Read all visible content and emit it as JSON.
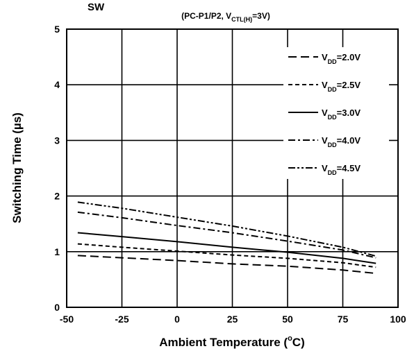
{
  "chart_data": {
    "type": "line",
    "title_fragment": "SW",
    "subtitle": {
      "prefix": "(PC-P1/P2, V",
      "sub": "CTL(H)",
      "suffix": "=3V)"
    },
    "xlabel": "Ambient Temperature (°C)",
    "xlabel_parts": {
      "main": "Ambient Temperature (",
      "sup": "o",
      "end": "C)"
    },
    "ylabel": "Switching Time (µs)",
    "xlim": [
      -50,
      100
    ],
    "ylim": [
      0,
      5
    ],
    "x_ticks": [
      "-50",
      "-25",
      "0",
      "25",
      "50",
      "75",
      "100"
    ],
    "x_tick_values": [
      -50,
      -25,
      0,
      25,
      50,
      75,
      100
    ],
    "y_ticks": [
      "0",
      "1",
      "2",
      "3",
      "4",
      "5"
    ],
    "y_tick_values": [
      0,
      1,
      2,
      3,
      4,
      5
    ],
    "grid": true,
    "legend_position": "top-right",
    "series": [
      {
        "name": "VDD=2.0V",
        "label_main": "V",
        "label_sub": "DD",
        "label_value": "=2.0V",
        "dash": "long-dash",
        "x": [
          -45,
          -25,
          0,
          25,
          50,
          75,
          90
        ],
        "y": [
          0.93,
          0.89,
          0.84,
          0.78,
          0.74,
          0.67,
          0.61
        ]
      },
      {
        "name": "VDD=2.5V",
        "label_main": "V",
        "label_sub": "DD",
        "label_value": "=2.5V",
        "dash": "short-dash",
        "x": [
          -45,
          -25,
          0,
          25,
          50,
          75,
          90
        ],
        "y": [
          1.14,
          1.08,
          1.01,
          0.94,
          0.88,
          0.8,
          0.72
        ]
      },
      {
        "name": "VDD=3.0V",
        "label_main": "V",
        "label_sub": "DD",
        "label_value": "=3.0V",
        "dash": "solid",
        "x": [
          -45,
          -25,
          0,
          25,
          50,
          75,
          90
        ],
        "y": [
          1.34,
          1.27,
          1.18,
          1.08,
          0.99,
          0.88,
          0.79
        ]
      },
      {
        "name": "VDD=4.0V",
        "label_main": "V",
        "label_sub": "DD",
        "label_value": "=4.0V",
        "dash": "dash-dot",
        "x": [
          -45,
          -25,
          0,
          25,
          50,
          75,
          90
        ],
        "y": [
          1.71,
          1.61,
          1.47,
          1.34,
          1.19,
          1.03,
          0.89
        ]
      },
      {
        "name": "VDD=4.5V",
        "label_main": "V",
        "label_sub": "DD",
        "label_value": "=4.5V",
        "dash": "dash-dot-dot",
        "x": [
          -45,
          -25,
          0,
          25,
          50,
          75,
          90
        ],
        "y": [
          1.89,
          1.78,
          1.62,
          1.46,
          1.28,
          1.08,
          0.92
        ]
      }
    ]
  }
}
